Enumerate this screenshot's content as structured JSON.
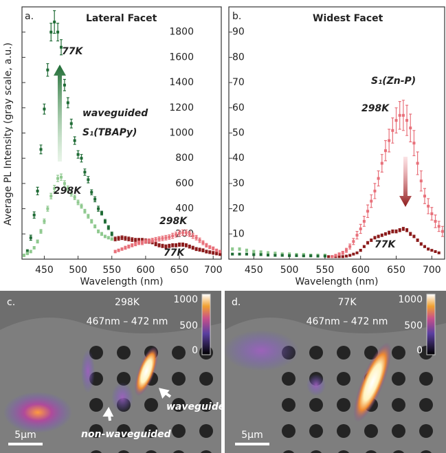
{
  "chart_data": [
    {
      "type": "scatter",
      "panel": "a.",
      "title": "Lateral Facet",
      "x_label": "Wavelength (nm)",
      "y_label": "Average PL Intensity (gray scale, a.u.)",
      "xlim": [
        417,
        712
      ],
      "xticks": [
        450,
        500,
        550,
        600,
        650,
        700
      ],
      "ylim": [
        0,
        2000
      ],
      "yticks": [
        200,
        400,
        600,
        800,
        1000,
        1200,
        1400,
        1600,
        1800
      ],
      "annotations": [
        {
          "text": "waveguided",
          "color": "#1f6b35"
        },
        {
          "text": "S₁(TBAPy)",
          "color": "#1f6b35"
        }
      ],
      "series": [
        {
          "name": "77K",
          "color": "#1f6b35",
          "x": [
            425,
            430,
            435,
            440,
            445,
            450,
            455,
            460,
            465,
            470,
            475,
            480,
            485,
            490,
            495,
            500,
            505,
            510,
            515,
            520,
            525,
            530,
            535,
            540,
            545,
            550
          ],
          "values": [
            60,
            170,
            350,
            540,
            870,
            1190,
            1500,
            1800,
            1880,
            1800,
            1680,
            1380,
            1240,
            1075,
            940,
            830,
            800,
            690,
            630,
            530,
            475,
            400,
            365,
            300,
            250,
            200
          ],
          "errors": [
            15,
            20,
            25,
            30,
            35,
            40,
            50,
            70,
            90,
            70,
            60,
            45,
            40,
            35,
            30,
            30,
            30,
            25,
            25,
            20,
            20,
            20,
            15,
            15,
            15,
            15
          ]
        },
        {
          "name": "298K",
          "color": "#8fc98f",
          "x": [
            420,
            425,
            430,
            435,
            440,
            445,
            450,
            455,
            460,
            465,
            470,
            475,
            480,
            485,
            490,
            495,
            500,
            505,
            510,
            515,
            520,
            525,
            530,
            535,
            540,
            545,
            550
          ],
          "values": [
            30,
            45,
            60,
            90,
            140,
            220,
            300,
            400,
            500,
            560,
            640,
            650,
            600,
            560,
            520,
            490,
            450,
            420,
            380,
            340,
            300,
            260,
            220,
            200,
            180,
            170,
            160
          ],
          "errors": [
            10,
            10,
            10,
            10,
            12,
            15,
            18,
            20,
            22,
            25,
            25,
            25,
            22,
            20,
            20,
            18,
            18,
            16,
            15,
            15,
            14,
            12,
            12,
            12,
            10,
            10,
            10
          ]
        },
        {
          "name": "77K",
          "color": "#8b1a1a",
          "x": [
            555,
            560,
            565,
            570,
            575,
            580,
            585,
            590,
            595,
            600,
            605,
            610,
            615,
            620,
            625,
            630,
            635,
            640,
            645,
            650,
            655,
            660,
            665,
            670,
            675,
            680,
            685,
            690,
            695,
            700,
            705,
            710
          ],
          "values": [
            160,
            165,
            170,
            165,
            160,
            155,
            150,
            150,
            150,
            145,
            140,
            135,
            120,
            110,
            105,
            100,
            105,
            110,
            110,
            115,
            115,
            110,
            100,
            90,
            80,
            75,
            70,
            60,
            55,
            50,
            45,
            40
          ],
          "errors": [
            15,
            15,
            15,
            15,
            15,
            15,
            15,
            15,
            15,
            15,
            14,
            14,
            14,
            13,
            13,
            13,
            13,
            13,
            13,
            13,
            13,
            13,
            12,
            12,
            12,
            12,
            12,
            11,
            11,
            11,
            11,
            11
          ]
        },
        {
          "name": "298K",
          "color": "#e8707a",
          "x": [
            555,
            560,
            565,
            570,
            575,
            580,
            585,
            590,
            595,
            600,
            605,
            610,
            615,
            620,
            625,
            630,
            635,
            640,
            645,
            650,
            655,
            660,
            665,
            670,
            675,
            680,
            685,
            690,
            695,
            700,
            705,
            710
          ],
          "values": [
            60,
            70,
            80,
            90,
            100,
            110,
            120,
            130,
            130,
            140,
            145,
            150,
            155,
            160,
            165,
            170,
            175,
            185,
            195,
            205,
            210,
            210,
            200,
            185,
            170,
            150,
            130,
            110,
            95,
            85,
            70,
            60
          ],
          "errors": [
            10,
            10,
            10,
            12,
            12,
            12,
            14,
            14,
            15,
            15,
            16,
            16,
            17,
            17,
            18,
            18,
            18,
            20,
            20,
            22,
            22,
            22,
            20,
            20,
            18,
            18,
            16,
            14,
            12,
            12,
            10,
            10
          ]
        }
      ]
    },
    {
      "type": "scatter",
      "panel": "b.",
      "title": "Widest Facet",
      "x_label": "Wavelength (nm)",
      "xlim": [
        415,
        718
      ],
      "xticks": [
        450,
        500,
        550,
        600,
        650,
        700
      ],
      "ylim": [
        0,
        100
      ],
      "yticks": [
        10,
        20,
        30,
        40,
        50,
        60,
        70,
        80,
        90
      ],
      "annotations": [
        {
          "text": "S₁(Zn-P)",
          "color": "#8b1a1a"
        }
      ],
      "series": [
        {
          "color": "#8fc98f",
          "x": [
            420,
            430,
            440,
            450,
            460,
            470,
            480,
            490,
            500,
            510,
            520,
            530,
            540,
            550
          ],
          "values": [
            4,
            4,
            3.5,
            3,
            2.8,
            2.5,
            2.3,
            2,
            2,
            1.8,
            1.8,
            1.5,
            1.5,
            1.5
          ],
          "errors": [
            0.5,
            0.5,
            0.5,
            0.5,
            0.5,
            0.5,
            0.5,
            0.5,
            0.5,
            0.5,
            0.5,
            0.5,
            0.5,
            0.5
          ]
        },
        {
          "color": "#1f6b35",
          "x": [
            420,
            430,
            440,
            450,
            460,
            470,
            480,
            490,
            500,
            510,
            520,
            530,
            540,
            550
          ],
          "values": [
            2,
            2,
            2,
            1.8,
            1.8,
            1.6,
            1.5,
            1.5,
            1.4,
            1.4,
            1.3,
            1.3,
            1.2,
            1.2
          ],
          "errors": [
            0.3,
            0.3,
            0.3,
            0.3,
            0.3,
            0.3,
            0.3,
            0.3,
            0.3,
            0.3,
            0.3,
            0.3,
            0.3,
            0.3
          ]
        },
        {
          "name": "77K",
          "color": "#8b1a1a",
          "x": [
            555,
            560,
            565,
            570,
            575,
            580,
            585,
            590,
            595,
            600,
            605,
            610,
            615,
            620,
            625,
            630,
            635,
            640,
            645,
            650,
            655,
            660,
            665,
            670,
            675,
            680,
            685,
            690,
            695,
            700,
            705,
            710
          ],
          "values": [
            1,
            1,
            1,
            1,
            1,
            1.2,
            1.5,
            2,
            2.5,
            3.5,
            5,
            6.5,
            7.5,
            8.5,
            9,
            9.5,
            10,
            10.5,
            11,
            11,
            11.5,
            12,
            11.5,
            10,
            9,
            7.5,
            6,
            5,
            4,
            3.5,
            3,
            2.5
          ],
          "errors": [
            0.3,
            0.3,
            0.3,
            0.3,
            0.3,
            0.3,
            0.3,
            0.3,
            0.3,
            0.4,
            0.4,
            0.5,
            0.5,
            0.5,
            0.5,
            0.5,
            0.5,
            0.6,
            0.6,
            0.6,
            0.6,
            0.6,
            0.6,
            0.6,
            0.5,
            0.5,
            0.5,
            0.4,
            0.4,
            0.3,
            0.3,
            0.3
          ]
        },
        {
          "name": "298K",
          "color": "#e8707a",
          "x": [
            560,
            565,
            570,
            575,
            580,
            585,
            590,
            595,
            600,
            605,
            610,
            615,
            620,
            625,
            630,
            635,
            640,
            645,
            650,
            655,
            660,
            665,
            670,
            675,
            680,
            685,
            690,
            695,
            700,
            705,
            710,
            715
          ],
          "values": [
            1,
            1.5,
            2,
            2.5,
            3.5,
            5,
            7,
            9.5,
            12,
            15,
            19,
            23,
            27,
            32,
            38,
            43,
            47,
            51,
            55,
            57,
            57,
            55,
            52,
            46,
            38,
            31,
            25,
            21,
            18,
            15,
            13,
            11
          ],
          "errors": [
            0.3,
            0.4,
            0.5,
            0.6,
            0.8,
            1,
            1.2,
            1.5,
            1.8,
            2,
            2.5,
            2.5,
            3,
            3,
            3.5,
            4,
            4.5,
            5,
            5,
            5.5,
            6,
            6,
            5.5,
            5,
            4.5,
            4,
            3,
            3,
            2.5,
            2.5,
            2,
            2
          ]
        }
      ]
    }
  ],
  "images": [
    {
      "label": "c.",
      "temperature": "298K",
      "range": "467nm – 472 nm",
      "colorbar_ticks": [
        1000,
        500,
        0
      ],
      "scale_bar": "5μm",
      "annotations": [
        "waveguided",
        "non-waveguided"
      ]
    },
    {
      "label": "d.",
      "temperature": "77K",
      "range": "467nm – 472 nm",
      "colorbar_ticks": [
        1000,
        500,
        0
      ],
      "scale_bar": "5μm"
    }
  ]
}
